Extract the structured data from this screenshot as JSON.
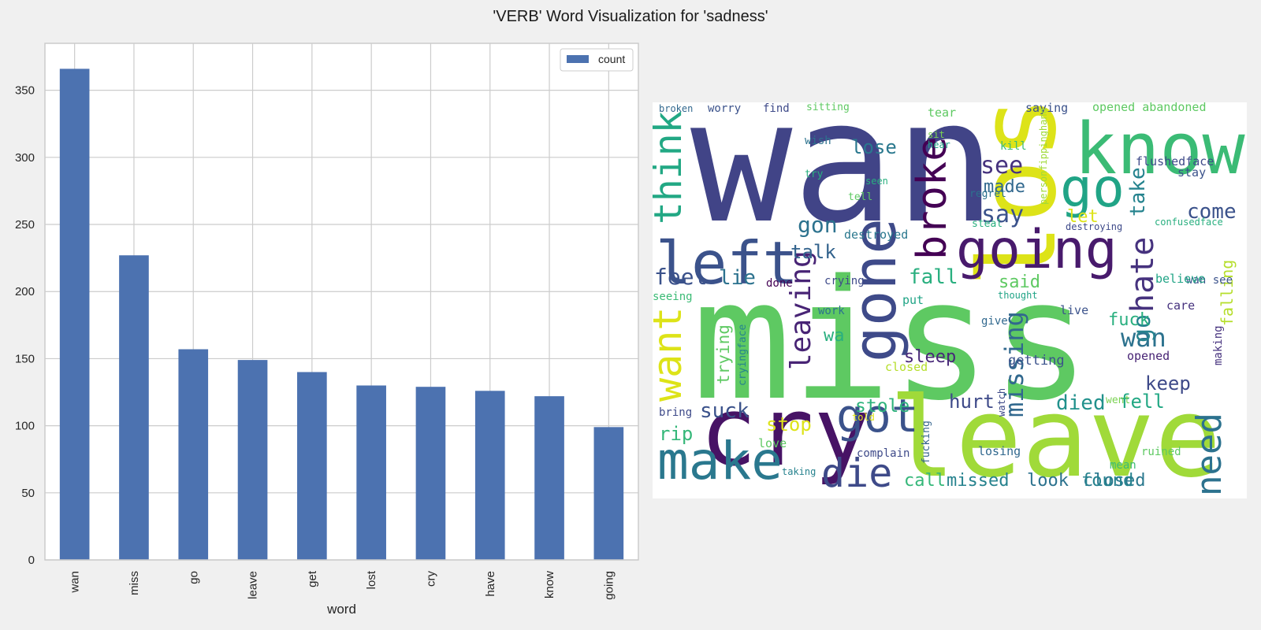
{
  "figure": {
    "title": "'VERB' Word Visualization for 'sadness'"
  },
  "chart_data": [
    {
      "type": "bar",
      "title": "",
      "xlabel": "word",
      "ylabel": "",
      "categories": [
        "wan",
        "miss",
        "go",
        "leave",
        "get",
        "lost",
        "cry",
        "have",
        "know",
        "going"
      ],
      "series": [
        {
          "name": "count",
          "values": [
            366,
            227,
            157,
            149,
            140,
            130,
            129,
            126,
            122,
            99
          ]
        }
      ],
      "ylim": [
        0,
        385
      ],
      "yticks": [
        0,
        50,
        100,
        150,
        200,
        250,
        300,
        350
      ],
      "grid": true,
      "legend_position": "top-right",
      "bar_color": "#4c72b0"
    },
    {
      "type": "wordcloud",
      "background": "#ffffff",
      "words": [
        {
          "text": "wan",
          "color": "#414487"
        },
        {
          "text": "miss",
          "color": "#5ec962"
        },
        {
          "text": "leave",
          "color": "#a0da39"
        },
        {
          "text": "lost",
          "color": "#dde318"
        },
        {
          "text": "cry",
          "color": "#471365"
        },
        {
          "text": "know",
          "color": "#3bbb75"
        },
        {
          "text": "going",
          "color": "#481a6c"
        },
        {
          "text": "left",
          "color": "#3b528b"
        },
        {
          "text": "make",
          "color": "#2a788e"
        },
        {
          "text": "gone",
          "color": "#3e4a89"
        },
        {
          "text": "go",
          "color": "#20a486"
        },
        {
          "text": "got",
          "color": "#3b528b"
        },
        {
          "text": "die",
          "color": "#3e4a89"
        },
        {
          "text": "think",
          "color": "#22a884"
        },
        {
          "text": "want",
          "color": "#dde318"
        },
        {
          "text": "broke",
          "color": "#440154"
        },
        {
          "text": "need",
          "color": "#2c728e"
        },
        {
          "text": "hate",
          "color": "#46327e"
        },
        {
          "text": "leaving",
          "color": "#482475"
        },
        {
          "text": "missing",
          "color": "#31688e"
        },
        {
          "text": "say",
          "color": "#3b528b"
        },
        {
          "text": "see",
          "color": "#46327e"
        },
        {
          "text": "gon",
          "color": "#2c728e"
        },
        {
          "text": "wan",
          "color": "#2c728e"
        },
        {
          "text": "go",
          "color": "#26828e"
        },
        {
          "text": "take",
          "color": "#25838e"
        },
        {
          "text": "come",
          "color": "#3b528b"
        },
        {
          "text": "feel",
          "color": "#3b528b"
        },
        {
          "text": "lie",
          "color": "#2c728e"
        },
        {
          "text": "talk",
          "color": "#33638d"
        },
        {
          "text": "fall",
          "color": "#29af7f"
        },
        {
          "text": "said",
          "color": "#5ec962"
        },
        {
          "text": "lose",
          "color": "#2a788e"
        },
        {
          "text": "made",
          "color": "#31688e"
        },
        {
          "text": "let",
          "color": "#dde318"
        },
        {
          "text": "suck",
          "color": "#3b528b"
        },
        {
          "text": "stole",
          "color": "#2eb37c"
        },
        {
          "text": "hurt",
          "color": "#3e4a89"
        },
        {
          "text": "died",
          "color": "#21918c"
        },
        {
          "text": "fell",
          "color": "#22a884"
        },
        {
          "text": "keep",
          "color": "#3e4a89"
        },
        {
          "text": "fuck",
          "color": "#29af7f"
        },
        {
          "text": "sleep",
          "color": "#482878"
        },
        {
          "text": "rip",
          "color": "#35b779"
        },
        {
          "text": "stop",
          "color": "#dde318"
        },
        {
          "text": "call",
          "color": "#35b779"
        },
        {
          "text": "missed",
          "color": "#26828e"
        },
        {
          "text": "look",
          "color": "#2c728e"
        },
        {
          "text": "closed",
          "color": "#2a788e"
        },
        {
          "text": "found",
          "color": "#26828e"
        },
        {
          "text": "trying",
          "color": "#5ec962"
        },
        {
          "text": "falling",
          "color": "#b5de2b"
        },
        {
          "text": "wa",
          "color": "#29af7f"
        },
        {
          "text": "getting",
          "color": "#3b528b"
        },
        {
          "text": "destroyed",
          "color": "#2a788e"
        },
        {
          "text": "crying",
          "color": "#3e4a89"
        },
        {
          "text": "done",
          "color": "#440154"
        },
        {
          "text": "wan see",
          "color": "#3b528b"
        },
        {
          "text": "put",
          "color": "#20a486"
        },
        {
          "text": "work",
          "color": "#2c728e"
        },
        {
          "text": "live",
          "color": "#3b528b"
        },
        {
          "text": "give",
          "color": "#31688e"
        },
        {
          "text": "believe",
          "color": "#20a486"
        },
        {
          "text": "care",
          "color": "#46327e"
        },
        {
          "text": "opened",
          "color": "#482475"
        },
        {
          "text": "seeing",
          "color": "#3bbb75"
        },
        {
          "text": "closed",
          "color": "#b5de2b"
        },
        {
          "text": "love",
          "color": "#5ec962"
        },
        {
          "text": "bring",
          "color": "#3e4a89"
        },
        {
          "text": "complain",
          "color": "#3e4a89"
        },
        {
          "text": "losing",
          "color": "#31688e"
        },
        {
          "text": "mean",
          "color": "#3bbb75"
        },
        {
          "text": "ruined",
          "color": "#5ec962"
        },
        {
          "text": "taking",
          "color": "#26828e"
        },
        {
          "text": "went",
          "color": "#7ad151"
        },
        {
          "text": "told",
          "color": "#dde318"
        },
        {
          "text": "watch",
          "color": "#3e4a89"
        },
        {
          "text": "fucking",
          "color": "#33638d"
        },
        {
          "text": "cryingface",
          "color": "#25838e"
        },
        {
          "text": "making",
          "color": "#46327e"
        },
        {
          "text": "thought",
          "color": "#20a486"
        },
        {
          "text": "broken",
          "color": "#31688e"
        },
        {
          "text": "worry",
          "color": "#3b528b"
        },
        {
          "text": "find",
          "color": "#3e4a89"
        },
        {
          "text": "sitting",
          "color": "#5ec962"
        },
        {
          "text": "tear",
          "color": "#5ec962"
        },
        {
          "text": "saying",
          "color": "#3b528b"
        },
        {
          "text": "opened abandoned",
          "color": "#5ec962"
        },
        {
          "text": "sit",
          "color": "#7ad151"
        },
        {
          "text": "hear",
          "color": "#20a486"
        },
        {
          "text": "wish",
          "color": "#2c728e"
        },
        {
          "text": "kill",
          "color": "#3bbb75"
        },
        {
          "text": "flushedface",
          "color": "#3e4a89"
        },
        {
          "text": "stay",
          "color": "#3b528b"
        },
        {
          "text": "try",
          "color": "#29af7f"
        },
        {
          "text": "seen",
          "color": "#29af7f"
        },
        {
          "text": "tell",
          "color": "#5ec962"
        },
        {
          "text": "regret",
          "color": "#2c728e"
        },
        {
          "text": "personfippinghand",
          "color": "#a0da39"
        },
        {
          "text": "steal",
          "color": "#29af7f"
        },
        {
          "text": "destroying",
          "color": "#3e4a89"
        },
        {
          "text": "confusedface",
          "color": "#29af7f"
        }
      ]
    }
  ]
}
